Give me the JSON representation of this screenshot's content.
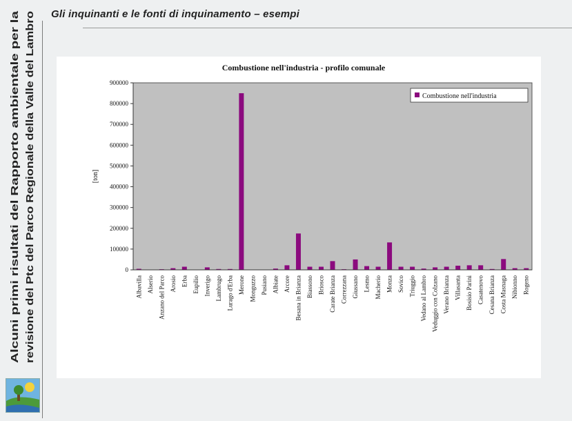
{
  "sidebar": {
    "line1": "Alcuni primi risultati del Rapporto ambientale per la",
    "line2": "revisione del Ptc del Parco Regionale della Valle del Lambro"
  },
  "header": {
    "title": "Gli inquinanti e le fonti di inquinamento – esempi"
  },
  "colors": {
    "bar": "#8b0a7e",
    "plot_area": "#c0c0c0",
    "background": "#eef0f1"
  },
  "chart_data": {
    "type": "bar",
    "title": "Combustione nell'industria - profilo comunale",
    "ylabel": "[ton]",
    "xlabel": "",
    "ylim": [
      0,
      900000
    ],
    "yticks": [
      0,
      100000,
      200000,
      300000,
      400000,
      500000,
      600000,
      700000,
      800000,
      900000
    ],
    "ytick_labels": [
      "0",
      "100000",
      "200000",
      "300000",
      "400000",
      "500000",
      "600000",
      "700000",
      "800000",
      "900000"
    ],
    "legend_position": "top-right",
    "grid": false,
    "categories": [
      "Albavilla",
      "Alserio",
      "Anzano del Parco",
      "Arosio",
      "Erba",
      "Eupilio",
      "Inverigo",
      "Lambrugo",
      "Lurago d'Erba",
      "Merone",
      "Monguzzo",
      "Pusiano",
      "Albiate",
      "Arcore",
      "Besana in Brianza",
      "Biassono",
      "Briosco",
      "Carate Brianza",
      "Correzzana",
      "Giussano",
      "Lesmo",
      "Macherio",
      "Monza",
      "Sovico",
      "Triuggio",
      "Vedano al Lambro",
      "Veduggio con Colzano",
      "Verano Brianza",
      "Villasanta",
      "Bosisio Parini",
      "Casatenovo",
      "Cesana Brianza",
      "Costa Masnaga",
      "Nibionno",
      "Rogeno"
    ],
    "series": [
      {
        "name": "Combustione nell'industria",
        "values": [
          5000,
          1000,
          3000,
          8000,
          15000,
          1000,
          12000,
          4000,
          4000,
          850000,
          1000,
          1000,
          6000,
          22000,
          175000,
          15000,
          15000,
          42000,
          3000,
          50000,
          18000,
          15000,
          132000,
          15000,
          15000,
          6000,
          12000,
          15000,
          20000,
          22000,
          22000,
          4000,
          52000,
          8000,
          8000
        ]
      }
    ]
  }
}
